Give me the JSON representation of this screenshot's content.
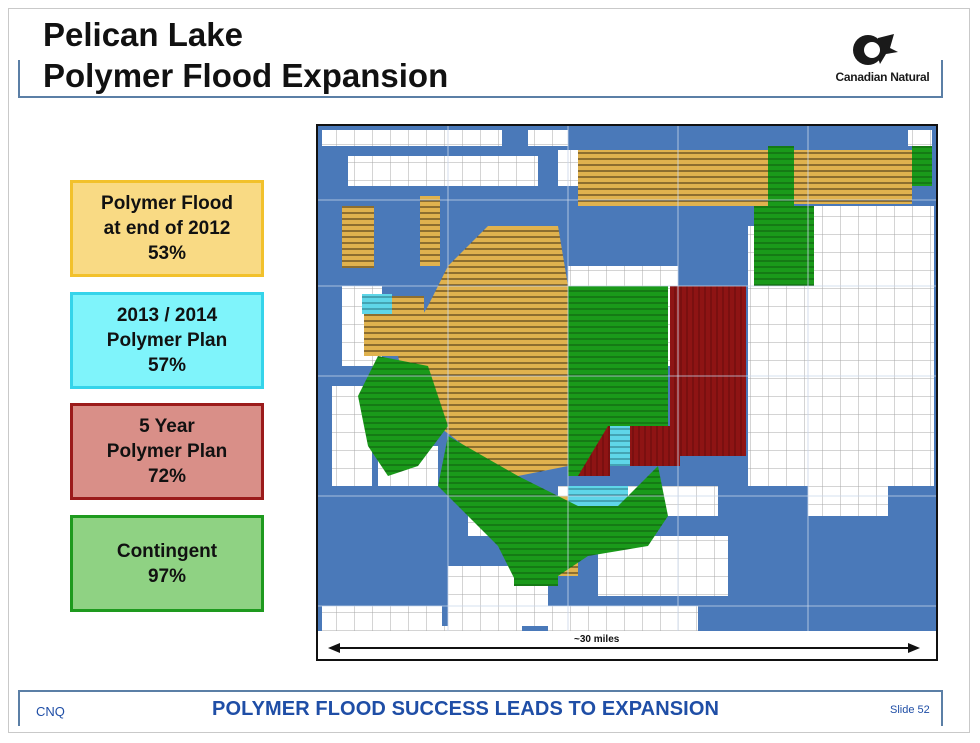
{
  "slide": {
    "title_line1": "Pelican Lake",
    "title_line2": "Polymer Flood Expansion",
    "logo_text": "Canadian Natural"
  },
  "legend": [
    {
      "line1": "Polymer Flood",
      "line2": "at end of 2012",
      "pct": "53%",
      "color": "#f9da84"
    },
    {
      "line1": "2013 / 2014",
      "line2": "Polymer Plan",
      "pct": "57%",
      "color": "#7ff4fb"
    },
    {
      "line1": "5 Year",
      "line2": "Polymer Plan",
      "pct": "72%",
      "color": "#d98f88"
    },
    {
      "line1": "Contingent",
      "line2": "",
      "pct": "97%",
      "color": "#8fd283"
    }
  ],
  "map": {
    "scale_label": "~30 miles",
    "water_color": "#4a79b9",
    "polymer_color": "#e0b24e",
    "plan_color": "#5fd6e8",
    "five_year_color": "#8e1414",
    "contingent_color": "#1a9a1a"
  },
  "footer": {
    "left": "CNQ",
    "center": "POLYMER FLOOD SUCCESS LEADS TO EXPANSION",
    "right": "Slide 52"
  }
}
